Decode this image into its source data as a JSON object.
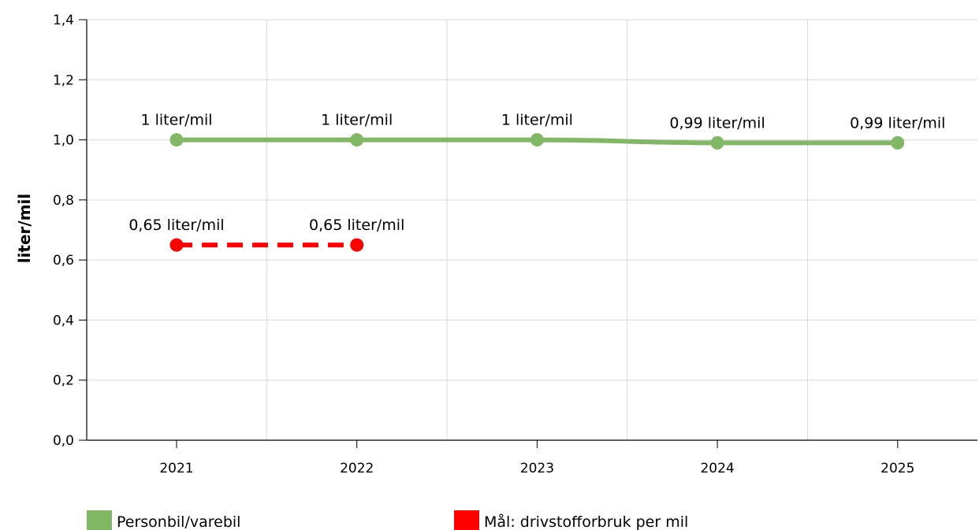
{
  "chart_data": {
    "type": "line",
    "ylabel": "liter/mil",
    "xlabel": "",
    "title": "",
    "categories": [
      "2021",
      "2022",
      "2023",
      "2024",
      "2025"
    ],
    "ylim": [
      0,
      1.4
    ],
    "yticks": [
      "0,0",
      "0,2",
      "0,4",
      "0,6",
      "0,8",
      "1,0",
      "1,2",
      "1,4"
    ],
    "grid": true,
    "legend_position": "bottom",
    "series": [
      {
        "name": "Personbil/varebil",
        "color": "#82b766",
        "style": "solid",
        "values": [
          1.0,
          1.0,
          1.0,
          0.99,
          0.99
        ],
        "labels": [
          "1 liter/mil",
          "1 liter/mil",
          "1 liter/mil",
          "0,99 liter/mil",
          "0,99 liter/mil"
        ]
      },
      {
        "name": "Mål: drivstofforbruk per mil",
        "color": "#ff0000",
        "style": "dashed",
        "values": [
          0.65,
          0.65,
          null,
          null,
          null
        ],
        "labels": [
          "0,65 liter/mil",
          "0,65 liter/mil",
          null,
          null,
          null
        ]
      }
    ]
  }
}
